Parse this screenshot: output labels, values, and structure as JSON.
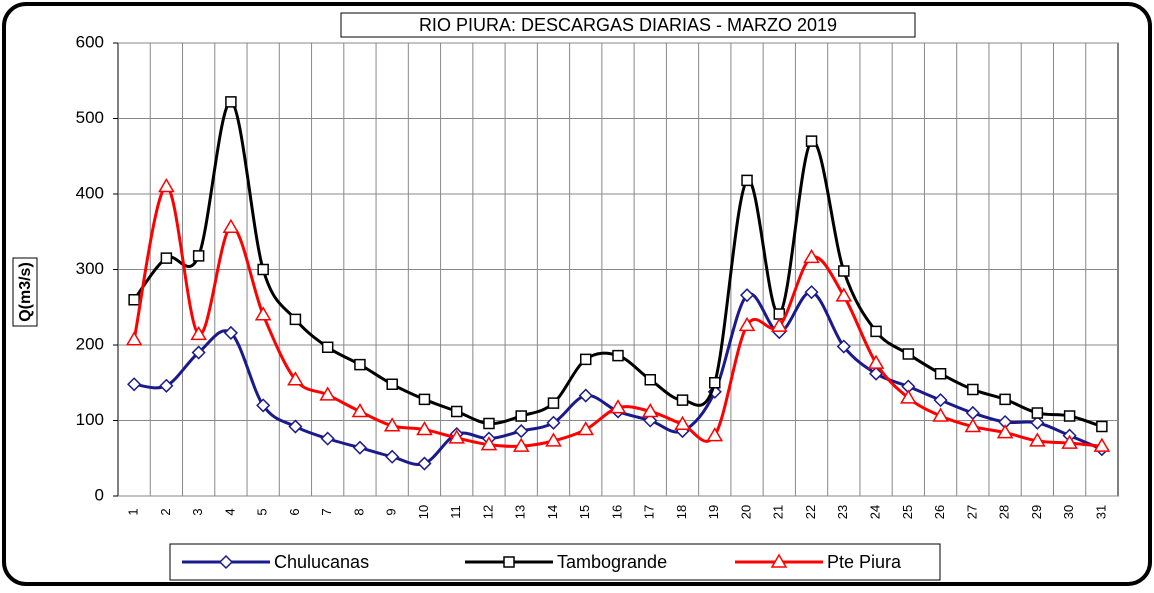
{
  "chart_data": {
    "type": "line",
    "title": "RIO PIURA: DESCARGAS DIARIAS - MARZO 2019",
    "y_label": "Q(m3/s)",
    "categories": [
      "1",
      "2",
      "3",
      "4",
      "5",
      "6",
      "7",
      "8",
      "9",
      "10",
      "11",
      "12",
      "13",
      "14",
      "15",
      "16",
      "17",
      "18",
      "19",
      "20",
      "21",
      "22",
      "23",
      "24",
      "25",
      "26",
      "27",
      "28",
      "29",
      "30",
      "31"
    ],
    "series": [
      {
        "name": "Chulucanas",
        "color": "#1a1a8c",
        "marker": "diamond",
        "values": [
          148,
          146,
          190,
          216,
          120,
          92,
          76,
          64,
          52,
          43,
          82,
          76,
          86,
          97,
          133,
          112,
          100,
          86,
          138,
          266,
          217,
          270,
          198,
          162,
          145,
          127,
          110,
          98,
          97,
          80,
          62
        ]
      },
      {
        "name": "Tambogrande",
        "color": "#000000",
        "marker": "square",
        "values": [
          260,
          315,
          318,
          522,
          300,
          234,
          197,
          174,
          148,
          128,
          112,
          96,
          106,
          123,
          181,
          186,
          154,
          127,
          150,
          418,
          241,
          470,
          298,
          218,
          188,
          162,
          141,
          128,
          110,
          106,
          92
        ]
      },
      {
        "name": "Pte Piura",
        "color": "#ff0000",
        "marker": "triangle",
        "values": [
          207,
          410,
          214,
          356,
          240,
          154,
          134,
          112,
          93,
          88,
          77,
          68,
          66,
          73,
          88,
          117,
          112,
          95,
          80,
          226,
          225,
          316,
          265,
          176,
          130,
          106,
          92,
          84,
          73,
          70,
          66
        ]
      }
    ],
    "ylim": [
      0,
      600
    ],
    "yticks": [
      0,
      100,
      200,
      300,
      400,
      500,
      600
    ],
    "grid": true
  }
}
